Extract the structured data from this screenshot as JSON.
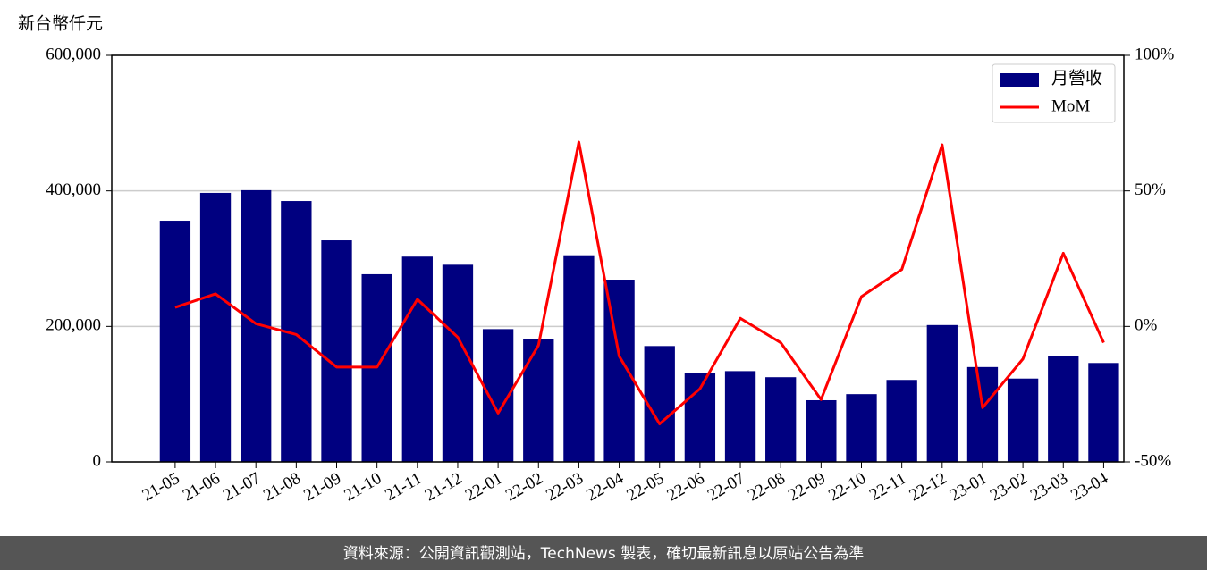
{
  "chart_data": {
    "type": "combo",
    "y_label": "新台幣仟元",
    "categories": [
      "21-05",
      "21-06",
      "21-07",
      "21-08",
      "21-09",
      "21-10",
      "21-11",
      "21-12",
      "22-01",
      "22-02",
      "22-03",
      "22-04",
      "22-05",
      "22-06",
      "22-07",
      "22-08",
      "22-09",
      "22-10",
      "22-11",
      "22-12",
      "23-01",
      "23-02",
      "23-03",
      "23-04"
    ],
    "series": [
      {
        "name": "月營收",
        "type": "bar",
        "color": "#000080",
        "values": [
          356000,
          397000,
          401000,
          385000,
          327000,
          277000,
          303000,
          291000,
          196000,
          181000,
          305000,
          269000,
          171000,
          131000,
          134000,
          125000,
          91000,
          100000,
          121000,
          202000,
          140000,
          123000,
          156000,
          146000
        ]
      },
      {
        "name": "MoM",
        "type": "line",
        "color": "#ff0000",
        "axis": "y2",
        "values": [
          7,
          12,
          1,
          -3,
          -15,
          -15,
          10,
          -4,
          -32,
          -7,
          68,
          -11,
          -36,
          -23,
          3,
          -6,
          -27,
          11,
          21,
          67,
          -30,
          -12,
          27,
          -6
        ]
      }
    ],
    "ylim": [
      0,
      600000
    ],
    "yticks": [
      0,
      {
        "value": 200000,
        "label": "200,000"
      },
      {
        "value": 400000,
        "label": "400,000"
      },
      {
        "value": 600000,
        "label": "600,000"
      }
    ],
    "y2lim": [
      -50,
      100
    ],
    "y2ticks": [
      {
        "value": -50,
        "label": "-50%"
      },
      {
        "value": 0,
        "label": "0%"
      },
      {
        "value": 50,
        "label": "50%"
      },
      {
        "value": 100,
        "label": "100%"
      }
    ],
    "grid": true,
    "legend": "upper right",
    "footer": "資料來源：公開資訊觀測站，TechNews 製表，確切最新訊息以原站公告為準"
  }
}
